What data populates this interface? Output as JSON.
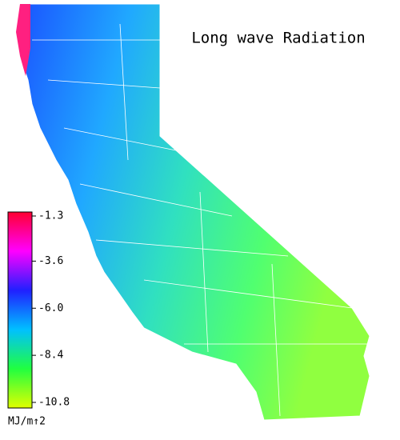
{
  "title": "Long wave Radiation",
  "colorbar": {
    "lim": [
      -10.8,
      -1.3
    ],
    "ticks": [
      -1.3,
      -3.6,
      {
        "value": -6,
        "label": "-6.0"
      },
      -8.4,
      -10.8
    ],
    "colors": [
      "#ff0030",
      "#ff00ff",
      "#2020ff",
      "#00c0ff",
      "#20ff40",
      "#e0ff00"
    ],
    "unit": "MJ/m↑2"
  }
}
